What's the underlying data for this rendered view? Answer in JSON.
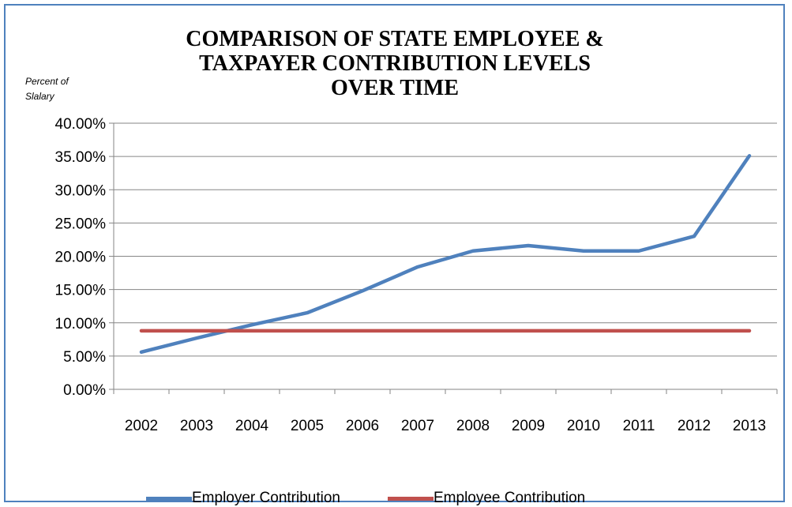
{
  "chart_data": {
    "type": "line",
    "title": "COMPARISON OF STATE EMPLOYEE & TAXPAYER CONTRIBUTION LEVELS OVER TIME",
    "title_lines": [
      "COMPARISON OF STATE EMPLOYEE &",
      "TAXPAYER CONTRIBUTION LEVELS",
      "OVER TIME"
    ],
    "ylabel_lines": [
      "Percent of",
      "Slalary"
    ],
    "xlabel": "",
    "categories": [
      "2002",
      "2003",
      "2004",
      "2005",
      "2006",
      "2007",
      "2008",
      "2009",
      "2010",
      "2011",
      "2012",
      "2013"
    ],
    "ylim": [
      0,
      0.4
    ],
    "yticks": [
      0.0,
      0.05,
      0.1,
      0.15,
      0.2,
      0.25,
      0.3,
      0.35,
      0.4
    ],
    "ytick_labels": [
      "0.00%",
      "5.00%",
      "10.00%",
      "15.00%",
      "20.00%",
      "25.00%",
      "30.00%",
      "35.00%",
      "40.00%"
    ],
    "grid": "horizontal",
    "legend_position": "bottom",
    "series": [
      {
        "name": "Employer Contribution",
        "color": "#4F81BD",
        "values": [
          0.056,
          0.077,
          0.097,
          0.115,
          0.148,
          0.184,
          0.208,
          0.216,
          0.208,
          0.208,
          0.23,
          0.351
        ]
      },
      {
        "name": "Employee Contribution",
        "color": "#C0504D",
        "values": [
          0.088,
          0.088,
          0.088,
          0.088,
          0.088,
          0.088,
          0.088,
          0.088,
          0.088,
          0.088,
          0.088,
          0.088
        ]
      }
    ]
  }
}
